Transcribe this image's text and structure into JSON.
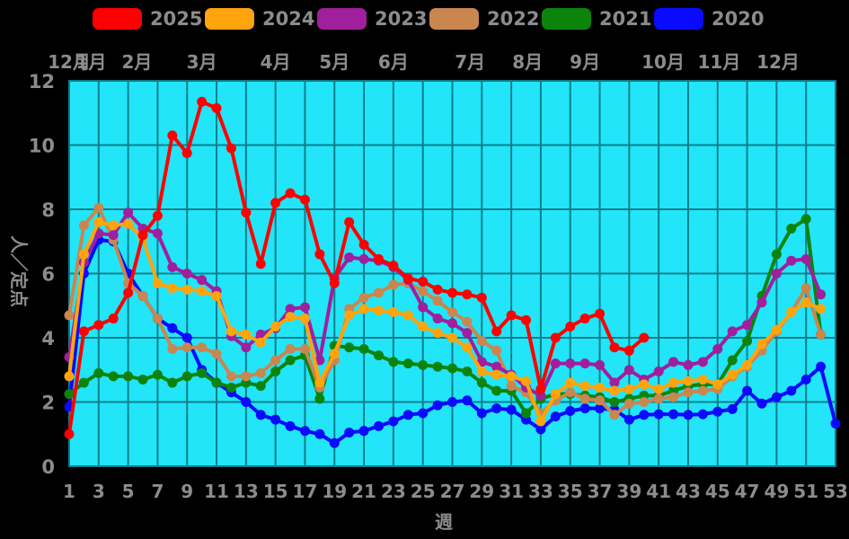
{
  "page": {
    "background": "#000000"
  },
  "legend": {
    "items": [
      {
        "label": "2025",
        "color": "#ff0000"
      },
      {
        "label": "2024",
        "color": "#ffa40d"
      },
      {
        "label": "2023",
        "color": "#a01f9d"
      },
      {
        "label": "2022",
        "color": "#c9864f"
      },
      {
        "label": "2021",
        "color": "#0c840c"
      },
      {
        "label": "2020",
        "color": "#0a0aff"
      }
    ]
  },
  "months": [
    {
      "label": "12月",
      "week": 1
    },
    {
      "label": "1月",
      "week": 2.5
    },
    {
      "label": "2月",
      "week": 5.6
    },
    {
      "label": "3月",
      "week": 10
    },
    {
      "label": "4月",
      "week": 15
    },
    {
      "label": "5月",
      "week": 19
    },
    {
      "label": "6月",
      "week": 23
    },
    {
      "label": "7月",
      "week": 28.2
    },
    {
      "label": "8月",
      "week": 32.1
    },
    {
      "label": "9月",
      "week": 36
    },
    {
      "label": "10月",
      "week": 41.3
    },
    {
      "label": "11月",
      "week": 45.1
    },
    {
      "label": "12月",
      "week": 49.1
    }
  ],
  "axes": {
    "y_ticks": [
      0,
      2,
      4,
      6,
      8,
      10,
      12
    ],
    "x_ticks": [
      1,
      3,
      5,
      7,
      9,
      11,
      13,
      15,
      17,
      19,
      21,
      23,
      25,
      27,
      29,
      31,
      33,
      35,
      37,
      39,
      41,
      43,
      45,
      47,
      49,
      51,
      53
    ]
  },
  "colors": {
    "plot_bg": "#22e5fa",
    "grid": "#0e7e89",
    "tick_text": "#8c8c8c"
  },
  "chart_data": {
    "type": "line",
    "title": "",
    "xlabel": "週",
    "ylabel": "人／定点",
    "x_range": [
      1,
      53
    ],
    "ylim": [
      0,
      12
    ],
    "grid": true,
    "legend_position": "top",
    "x_unit": "week_number",
    "series": [
      {
        "name": "2025",
        "color": "#ff0000",
        "values": [
          1.0,
          4.2,
          4.4,
          4.6,
          5.4,
          7.2,
          7.8,
          10.3,
          9.75,
          11.35,
          11.15,
          9.9,
          7.9,
          6.3,
          8.2,
          8.5,
          8.3,
          6.6,
          5.7,
          7.6,
          6.9,
          6.45,
          6.25,
          5.85,
          5.75,
          5.5,
          5.4,
          5.35,
          5.25,
          4.2,
          4.7,
          4.55,
          2.4,
          4.0,
          4.35,
          4.6,
          4.75,
          3.7,
          3.6,
          4.0
        ]
      },
      {
        "name": "2024",
        "color": "#ffa40d",
        "values": [
          2.8,
          6.6,
          7.6,
          7.5,
          7.55,
          7.1,
          5.7,
          5.55,
          5.5,
          5.45,
          5.3,
          4.2,
          4.1,
          3.85,
          4.35,
          4.65,
          4.6,
          2.6,
          3.5,
          4.7,
          4.9,
          4.85,
          4.8,
          4.7,
          4.35,
          4.15,
          4.0,
          3.7,
          2.95,
          2.85,
          2.8,
          2.65,
          1.4,
          2.25,
          2.6,
          2.5,
          2.45,
          2.35,
          2.4,
          2.55,
          2.4,
          2.6,
          2.65,
          2.7,
          2.55,
          2.85,
          3.15,
          3.8,
          4.25,
          4.8,
          5.1,
          4.9
        ]
      },
      {
        "name": "2023",
        "color": "#a01f9d",
        "values": [
          3.4,
          6.35,
          7.25,
          7.2,
          7.9,
          7.4,
          7.25,
          6.2,
          6.0,
          5.8,
          5.45,
          4.05,
          3.7,
          4.1,
          4.3,
          4.9,
          4.95,
          3.3,
          5.85,
          6.5,
          6.45,
          6.4,
          6.2,
          5.8,
          4.95,
          4.6,
          4.45,
          4.15,
          3.25,
          3.1,
          2.85,
          2.45,
          2.2,
          3.2,
          3.2,
          3.2,
          3.15,
          2.6,
          3.0,
          2.7,
          2.95,
          3.25,
          3.15,
          3.25,
          3.65,
          4.2,
          4.4,
          5.1,
          6.0,
          6.4,
          6.45,
          5.35
        ]
      },
      {
        "name": "2022",
        "color": "#c9864f",
        "values": [
          4.7,
          7.5,
          8.05,
          7.05,
          5.7,
          5.3,
          4.6,
          3.65,
          3.7,
          3.7,
          3.5,
          2.8,
          2.8,
          2.9,
          3.3,
          3.65,
          3.65,
          2.45,
          3.3,
          4.9,
          5.25,
          5.4,
          5.65,
          5.7,
          5.45,
          5.15,
          4.8,
          4.5,
          3.9,
          3.6,
          2.5,
          2.3,
          1.65,
          2.05,
          2.3,
          2.1,
          2.05,
          1.6,
          1.95,
          2.0,
          2.1,
          2.15,
          2.3,
          2.35,
          2.4,
          2.8,
          3.1,
          3.6,
          4.2,
          4.8,
          5.55,
          4.1
        ]
      },
      {
        "name": "2021",
        "color": "#0c840c",
        "values": [
          2.25,
          2.6,
          2.9,
          2.8,
          2.8,
          2.7,
          2.85,
          2.6,
          2.8,
          2.9,
          2.6,
          2.45,
          2.6,
          2.5,
          2.95,
          3.3,
          3.45,
          2.1,
          3.75,
          3.7,
          3.65,
          3.45,
          3.25,
          3.2,
          3.15,
          3.1,
          3.05,
          2.95,
          2.6,
          2.35,
          2.35,
          1.65,
          2.1,
          2.25,
          2.25,
          2.2,
          2.15,
          2.0,
          2.1,
          2.2,
          2.2,
          2.35,
          2.5,
          2.55,
          2.55,
          3.3,
          3.9,
          5.3,
          6.6,
          7.4,
          7.7,
          4.1
        ]
      },
      {
        "name": "2020",
        "color": "#0a0aff",
        "values": [
          1.85,
          6.0,
          7.05,
          7.0,
          6.0,
          5.3,
          4.6,
          4.3,
          4.0,
          3.0,
          2.6,
          2.3,
          2.0,
          1.6,
          1.45,
          1.25,
          1.1,
          1.0,
          0.72,
          1.05,
          1.1,
          1.25,
          1.4,
          1.6,
          1.65,
          1.9,
          2.0,
          2.05,
          1.65,
          1.8,
          1.76,
          1.45,
          1.15,
          1.55,
          1.72,
          1.8,
          1.8,
          1.76,
          1.45,
          1.6,
          1.62,
          1.62,
          1.6,
          1.62,
          1.7,
          1.78,
          2.35,
          1.95,
          2.15,
          2.35,
          2.7,
          3.1,
          1.33
        ]
      }
    ]
  }
}
